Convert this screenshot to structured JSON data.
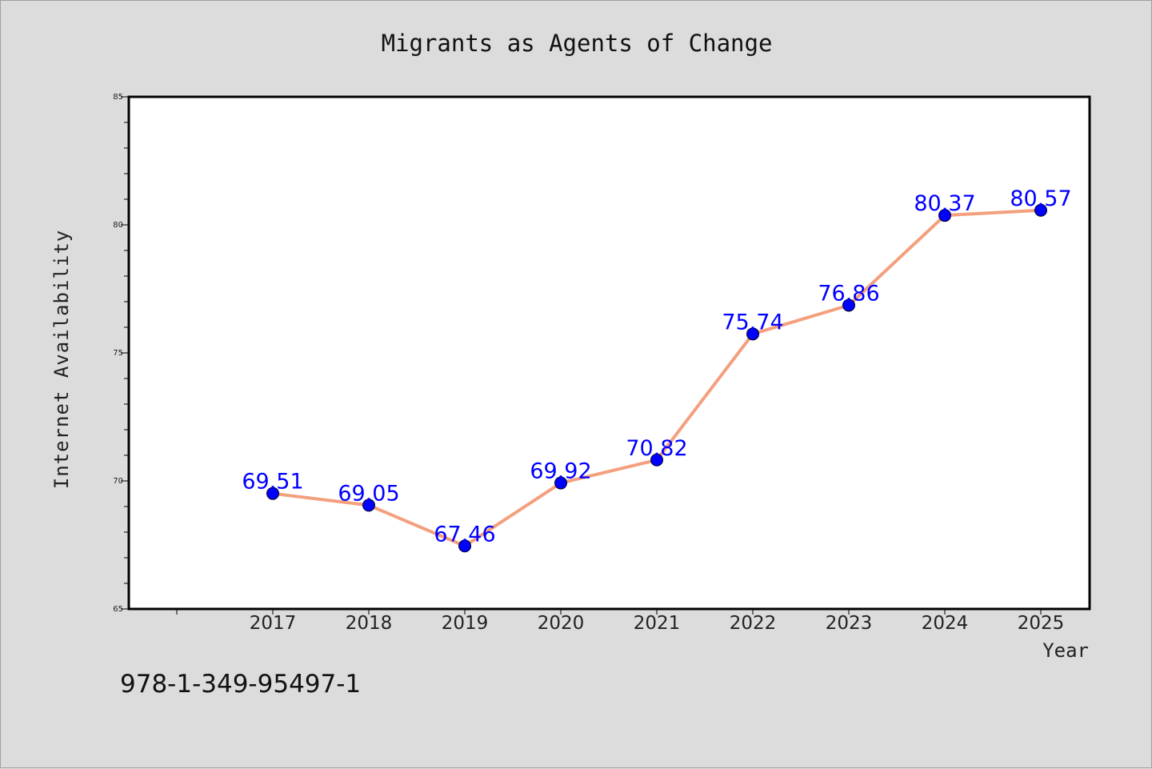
{
  "chart_data": {
    "type": "line",
    "title": "Migrants as Agents of Change",
    "xlabel": "Year",
    "ylabel": "Internet Availability",
    "x": [
      "2017",
      "2018",
      "2019",
      "2020",
      "2021",
      "2022",
      "2023",
      "2024",
      "2025"
    ],
    "series": [
      {
        "values": [
          69.51,
          69.05,
          67.46,
          69.92,
          70.82,
          75.74,
          76.86,
          80.37,
          80.57
        ],
        "labels": [
          "69.51",
          "69.05",
          "67.46",
          "69.92",
          "70.82",
          "75.74",
          "76.86",
          "80.37",
          "80.57"
        ],
        "line_color": "#f4a07e",
        "marker_color": "#0000ff"
      }
    ],
    "ylim": [
      65,
      85
    ],
    "yticks": [
      "65",
      "70",
      "75",
      "80",
      "85"
    ],
    "grid": false,
    "legend": "none",
    "label_color": "#0000ff"
  },
  "footer": {
    "isbn": "978-1-349-95497-1"
  }
}
